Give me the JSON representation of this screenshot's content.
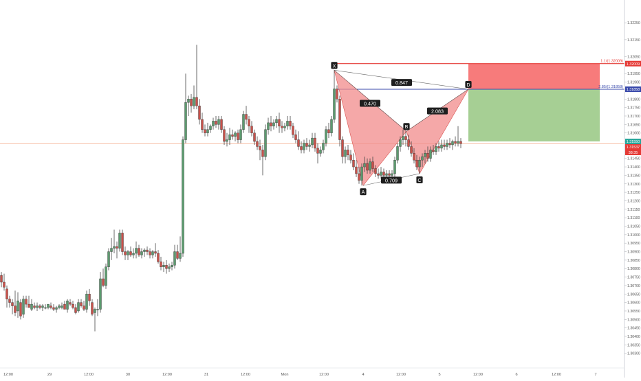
{
  "chart_data": {
    "type": "candlestick",
    "colors": {
      "up": "#26a69a",
      "up_fill": "#5b9b6e",
      "down": "#ef5350",
      "down_fill": "#c9514a",
      "pattern_fill": "#f28b8b",
      "stop_zone": "#f77b7b",
      "target_zone": "#a6cf94",
      "red_line": "#e53935",
      "blue_line": "#3949ab",
      "price_line": "#f4a582"
    },
    "y_axis": {
      "ylim": [
        1.3023,
        1.3236
      ],
      "ticks": [
        "1.32250",
        "1.32150",
        "1.32050",
        "1.31950",
        "1.31900",
        "1.31800",
        "1.31750",
        "1.31700",
        "1.31650",
        "1.31600",
        "1.31550",
        "1.31450",
        "1.31400",
        "1.31350",
        "1.31300",
        "1.31250",
        "1.31200",
        "1.31150",
        "1.31100",
        "1.31050",
        "1.31000",
        "1.30950",
        "1.30900",
        "1.30850",
        "1.30800",
        "1.30750",
        "1.30700",
        "1.30650",
        "1.30600",
        "1.30550",
        "1.30500",
        "1.30450",
        "1.30400",
        "1.30350",
        "1.30300"
      ]
    },
    "x_axis": {
      "ticks": [
        {
          "label": "12:00",
          "x": 12
        },
        {
          "label": "29",
          "x": 72
        },
        {
          "label": "12:00",
          "x": 129
        },
        {
          "label": "30",
          "x": 186
        },
        {
          "label": "12:00",
          "x": 243
        },
        {
          "label": "31",
          "x": 300
        },
        {
          "label": "12:00",
          "x": 357
        },
        {
          "label": "Mon",
          "x": 414
        },
        {
          "label": "12:00",
          "x": 471
        },
        {
          "label": "4",
          "x": 528
        },
        {
          "label": "12:00",
          "x": 583
        },
        {
          "label": "5",
          "x": 639
        },
        {
          "label": "12:00",
          "x": 695
        },
        {
          "label": "6",
          "x": 751
        },
        {
          "label": "12:00",
          "x": 809
        },
        {
          "label": "7",
          "x": 866
        }
      ]
    },
    "price_badges": [
      {
        "id": "stop-badge",
        "text": "1.32009",
        "value": 1.32009,
        "color": "#e53935"
      },
      {
        "id": "entry-badge",
        "text": "1.31858",
        "value": 1.31858,
        "color": "#3949ab"
      },
      {
        "id": "target-badge",
        "text": "1.31550",
        "value": 1.3155,
        "color": "#26a69a"
      },
      {
        "id": "last-badge",
        "text": "1.31537",
        "value": 1.31537,
        "color": "#e53935"
      },
      {
        "id": "countdown-badge",
        "text": "38:35",
        "value": 1.31505,
        "color": "#e53935"
      }
    ],
    "line_labels": [
      {
        "id": "stop-line-label",
        "text": "1.1/(1.32009)",
        "value": 1.32009
      },
      {
        "id": "entry-line-label",
        "text": "2.85/(1.31858)",
        "value": 1.31858
      }
    ],
    "pattern": {
      "name": "Bat",
      "points": [
        {
          "label": "X",
          "t": 486,
          "price": 1.3197
        },
        {
          "label": "A",
          "t": 528,
          "price": 1.3129
        },
        {
          "label": "B",
          "t": 591,
          "price": 1.3161
        },
        {
          "label": "C",
          "t": 610,
          "price": 1.3136
        },
        {
          "label": "D",
          "t": 681,
          "price": 1.31858
        }
      ],
      "ratios": [
        {
          "text": "0.847",
          "t": 584,
          "price": 1.31898
        },
        {
          "text": "0.470",
          "t": 538,
          "price": 1.31775
        },
        {
          "text": "2.083",
          "t": 636,
          "price": 1.3173
        },
        {
          "text": "0.709",
          "t": 569,
          "price": 1.31322
        }
      ]
    },
    "zones": {
      "stop": {
        "top": 1.32009,
        "bottom": 1.31858,
        "t_start": 681,
        "t_end": 872
      },
      "target": {
        "top": 1.31858,
        "bottom": 1.3155,
        "t_start": 681,
        "t_end": 872
      }
    },
    "series": [
      [
        -2,
        1.3078,
        1.3076,
        1.3074,
        1.3074
      ],
      [
        2,
        1.3076,
        1.3078,
        1.3069,
        1.3072
      ],
      [
        6,
        1.3072,
        1.3077,
        1.3067,
        1.3069
      ],
      [
        10,
        1.3068,
        1.307,
        1.3057,
        1.3062
      ],
      [
        14,
        1.3062,
        1.3064,
        1.3057,
        1.306
      ],
      [
        18,
        1.306,
        1.3062,
        1.3053,
        1.3058
      ],
      [
        22,
        1.3058,
        1.3067,
        1.3052,
        1.3054
      ],
      [
        26,
        1.3055,
        1.3066,
        1.3051,
        1.3061
      ],
      [
        30,
        1.306,
        1.3062,
        1.305,
        1.3052
      ],
      [
        34,
        1.3053,
        1.3064,
        1.3051,
        1.3062
      ],
      [
        38,
        1.3062,
        1.3064,
        1.3057,
        1.3059
      ],
      [
        42,
        1.3059,
        1.3064,
        1.3057,
        1.3057
      ],
      [
        46,
        1.3056,
        1.3062,
        1.3055,
        1.3059
      ],
      [
        50,
        1.3058,
        1.306,
        1.3056,
        1.3057
      ],
      [
        54,
        1.3057,
        1.306,
        1.3055,
        1.3058
      ],
      [
        58,
        1.3058,
        1.3059,
        1.3056,
        1.3057
      ],
      [
        62,
        1.3057,
        1.3059,
        1.3055,
        1.3058
      ],
      [
        66,
        1.3057,
        1.3059,
        1.3056,
        1.3057
      ],
      [
        70,
        1.3057,
        1.3059,
        1.3056,
        1.3059
      ],
      [
        74,
        1.3058,
        1.306,
        1.3056,
        1.3057
      ],
      [
        78,
        1.3057,
        1.3059,
        1.3055,
        1.3056
      ],
      [
        82,
        1.3056,
        1.3058,
        1.3054,
        1.3057
      ],
      [
        86,
        1.3057,
        1.3059,
        1.3056,
        1.3058
      ],
      [
        90,
        1.3057,
        1.306,
        1.3056,
        1.3058
      ],
      [
        94,
        1.3059,
        1.3061,
        1.3056,
        1.3056
      ],
      [
        98,
        1.3056,
        1.3062,
        1.3054,
        1.3061
      ],
      [
        102,
        1.306,
        1.3062,
        1.3058,
        1.3059
      ],
      [
        106,
        1.3059,
        1.3061,
        1.3056,
        1.3057
      ],
      [
        110,
        1.3057,
        1.3059,
        1.3053,
        1.3054
      ],
      [
        114,
        1.3055,
        1.3062,
        1.3054,
        1.306
      ],
      [
        118,
        1.306,
        1.3062,
        1.3057,
        1.3058
      ],
      [
        122,
        1.3058,
        1.3061,
        1.3055,
        1.3056
      ],
      [
        126,
        1.3056,
        1.3067,
        1.3054,
        1.3065
      ],
      [
        130,
        1.3065,
        1.3068,
        1.3058,
        1.3061
      ],
      [
        134,
        1.306,
        1.3062,
        1.3052,
        1.3053
      ],
      [
        138,
        1.3054,
        1.3057,
        1.3043,
        1.3056
      ],
      [
        142,
        1.3056,
        1.3062,
        1.3052,
        1.3056
      ],
      [
        146,
        1.3056,
        1.3078,
        1.3054,
        1.3074
      ],
      [
        150,
        1.3074,
        1.308,
        1.3069,
        1.307
      ],
      [
        154,
        1.307,
        1.3083,
        1.3068,
        1.3081
      ],
      [
        158,
        1.3081,
        1.3092,
        1.3079,
        1.309
      ],
      [
        162,
        1.309,
        1.3098,
        1.3085,
        1.3092
      ],
      [
        166,
        1.3092,
        1.3103,
        1.3089,
        1.3093
      ],
      [
        170,
        1.3093,
        1.3096,
        1.3086,
        1.3092
      ],
      [
        174,
        1.3092,
        1.3103,
        1.309,
        1.3101
      ],
      [
        178,
        1.3101,
        1.3103,
        1.3088,
        1.309
      ],
      [
        182,
        1.309,
        1.3093,
        1.3085,
        1.3088
      ],
      [
        186,
        1.3088,
        1.3091,
        1.3085,
        1.309
      ],
      [
        190,
        1.309,
        1.3093,
        1.3087,
        1.3088
      ],
      [
        194,
        1.3088,
        1.3092,
        1.3086,
        1.3089
      ],
      [
        198,
        1.3089,
        1.3096,
        1.3086,
        1.3092
      ],
      [
        202,
        1.3092,
        1.3094,
        1.3087,
        1.3088
      ],
      [
        206,
        1.3088,
        1.3092,
        1.3086,
        1.309
      ],
      [
        210,
        1.309,
        1.3092,
        1.3087,
        1.3091
      ],
      [
        214,
        1.3091,
        1.3093,
        1.3088,
        1.309
      ],
      [
        218,
        1.309,
        1.3092,
        1.3086,
        1.3088
      ],
      [
        222,
        1.3088,
        1.3091,
        1.3086,
        1.309
      ],
      [
        226,
        1.309,
        1.3095,
        1.3087,
        1.3089
      ],
      [
        230,
        1.3089,
        1.3091,
        1.3083,
        1.3084
      ],
      [
        234,
        1.3084,
        1.3087,
        1.3079,
        1.3081
      ],
      [
        238,
        1.3081,
        1.3084,
        1.3078,
        1.3082
      ],
      [
        242,
        1.3082,
        1.3085,
        1.3077,
        1.308
      ],
      [
        246,
        1.308,
        1.3083,
        1.3078,
        1.3081
      ],
      [
        250,
        1.3081,
        1.3084,
        1.3079,
        1.3082
      ],
      [
        254,
        1.3082,
        1.3094,
        1.308,
        1.309
      ],
      [
        258,
        1.309,
        1.3094,
        1.3085,
        1.3086
      ],
      [
        262,
        1.3086,
        1.3099,
        1.3084,
        1.3089
      ],
      [
        266,
        1.3089,
        1.3158,
        1.3087,
        1.3156
      ],
      [
        270,
        1.3156,
        1.3195,
        1.3154,
        1.3178
      ],
      [
        274,
        1.3178,
        1.3182,
        1.317,
        1.318
      ],
      [
        278,
        1.318,
        1.3183,
        1.3172,
        1.3176
      ],
      [
        282,
        1.3176,
        1.3188,
        1.3174,
        1.3181
      ],
      [
        286,
        1.3181,
        1.3212,
        1.3174,
        1.3176
      ],
      [
        290,
        1.3176,
        1.318,
        1.3165,
        1.3168
      ],
      [
        294,
        1.3168,
        1.3172,
        1.316,
        1.3162
      ],
      [
        298,
        1.3162,
        1.3165,
        1.3158,
        1.316
      ],
      [
        302,
        1.316,
        1.3166,
        1.3158,
        1.3162
      ],
      [
        306,
        1.3162,
        1.3165,
        1.316,
        1.3164
      ],
      [
        310,
        1.3164,
        1.3169,
        1.3162,
        1.3167
      ],
      [
        314,
        1.3167,
        1.317,
        1.3163,
        1.3165
      ],
      [
        318,
        1.3165,
        1.317,
        1.3162,
        1.3168
      ],
      [
        322,
        1.3168,
        1.317,
        1.316,
        1.3162
      ],
      [
        326,
        1.3162,
        1.3164,
        1.3153,
        1.3155
      ],
      [
        330,
        1.3155,
        1.316,
        1.3152,
        1.3156
      ],
      [
        334,
        1.3156,
        1.3163,
        1.3153,
        1.3159
      ],
      [
        338,
        1.3159,
        1.3162,
        1.3156,
        1.3158
      ],
      [
        342,
        1.3158,
        1.3161,
        1.3155,
        1.316
      ],
      [
        346,
        1.316,
        1.3162,
        1.3154,
        1.3156
      ],
      [
        350,
        1.3156,
        1.3165,
        1.3154,
        1.3162
      ],
      [
        354,
        1.3162,
        1.3173,
        1.316,
        1.3171
      ],
      [
        358,
        1.3171,
        1.3176,
        1.3165,
        1.3168
      ],
      [
        362,
        1.3168,
        1.317,
        1.316,
        1.3164
      ],
      [
        366,
        1.3164,
        1.3167,
        1.3158,
        1.316
      ],
      [
        370,
        1.316,
        1.3162,
        1.3153,
        1.3155
      ],
      [
        374,
        1.3155,
        1.3158,
        1.315,
        1.3152
      ],
      [
        378,
        1.3152,
        1.3156,
        1.3144,
        1.315
      ],
      [
        382,
        1.315,
        1.3153,
        1.3135,
        1.3146
      ],
      [
        386,
        1.3146,
        1.3165,
        1.3144,
        1.3162
      ],
      [
        390,
        1.3162,
        1.3169,
        1.3159,
        1.3166
      ],
      [
        394,
        1.3166,
        1.317,
        1.3161,
        1.3164
      ],
      [
        398,
        1.3164,
        1.3168,
        1.3162,
        1.3166
      ],
      [
        402,
        1.3166,
        1.317,
        1.3163,
        1.3168
      ],
      [
        406,
        1.3168,
        1.3172,
        1.316,
        1.3164
      ],
      [
        410,
        1.3164,
        1.3167,
        1.316,
        1.3163
      ],
      [
        414,
        1.3163,
        1.3166,
        1.3161,
        1.3164
      ],
      [
        418,
        1.3164,
        1.317,
        1.3162,
        1.3167
      ],
      [
        422,
        1.3167,
        1.317,
        1.3162,
        1.3164
      ],
      [
        426,
        1.3164,
        1.3166,
        1.3157,
        1.3159
      ],
      [
        430,
        1.3159,
        1.3162,
        1.3154,
        1.3156
      ],
      [
        434,
        1.3156,
        1.3161,
        1.315,
        1.3152
      ],
      [
        438,
        1.3152,
        1.3155,
        1.3148,
        1.315
      ],
      [
        442,
        1.315,
        1.3156,
        1.3148,
        1.3154
      ],
      [
        446,
        1.3154,
        1.3157,
        1.315,
        1.3152
      ],
      [
        450,
        1.3152,
        1.3156,
        1.3149,
        1.3153
      ],
      [
        454,
        1.3153,
        1.316,
        1.3151,
        1.3157
      ],
      [
        458,
        1.3157,
        1.316,
        1.3149,
        1.3151
      ],
      [
        462,
        1.3151,
        1.3154,
        1.3142,
        1.3148
      ],
      [
        466,
        1.3148,
        1.3152,
        1.3146,
        1.315
      ],
      [
        470,
        1.315,
        1.3156,
        1.3148,
        1.3154
      ],
      [
        474,
        1.3154,
        1.3164,
        1.3152,
        1.3162
      ],
      [
        478,
        1.3162,
        1.3166,
        1.3157,
        1.316
      ],
      [
        482,
        1.316,
        1.317,
        1.3158,
        1.3168
      ],
      [
        486,
        1.3168,
        1.3197,
        1.3166,
        1.3186
      ],
      [
        490,
        1.3186,
        1.3188,
        1.3178,
        1.318
      ],
      [
        494,
        1.318,
        1.3182,
        1.3152,
        1.3156
      ],
      [
        498,
        1.3156,
        1.3158,
        1.3142,
        1.3146
      ],
      [
        502,
        1.3146,
        1.3152,
        1.3142,
        1.315
      ],
      [
        506,
        1.315,
        1.3153,
        1.3144,
        1.3147
      ],
      [
        510,
        1.3147,
        1.315,
        1.3142,
        1.3144
      ],
      [
        514,
        1.3144,
        1.3148,
        1.3138,
        1.314
      ],
      [
        518,
        1.314,
        1.3144,
        1.3134,
        1.3136
      ],
      [
        522,
        1.3136,
        1.314,
        1.313,
        1.3132
      ],
      [
        526,
        1.3132,
        1.3142,
        1.3129,
        1.314
      ],
      [
        530,
        1.314,
        1.3146,
        1.3137,
        1.3142
      ],
      [
        534,
        1.3142,
        1.3145,
        1.3136,
        1.3138
      ],
      [
        538,
        1.3138,
        1.3145,
        1.3136,
        1.3143
      ],
      [
        542,
        1.3143,
        1.3146,
        1.3137,
        1.3139
      ],
      [
        546,
        1.3139,
        1.3141,
        1.3134,
        1.3136
      ],
      [
        550,
        1.3136,
        1.3139,
        1.3133,
        1.3135
      ],
      [
        554,
        1.3135,
        1.314,
        1.3133,
        1.3137
      ],
      [
        558,
        1.3137,
        1.3139,
        1.3133,
        1.3135
      ],
      [
        562,
        1.3135,
        1.3138,
        1.3132,
        1.3136
      ],
      [
        566,
        1.3136,
        1.3138,
        1.3134,
        1.3135
      ],
      [
        570,
        1.3135,
        1.3138,
        1.3132,
        1.3136
      ],
      [
        574,
        1.3136,
        1.3146,
        1.3134,
        1.3144
      ],
      [
        578,
        1.3144,
        1.3154,
        1.3142,
        1.3152
      ],
      [
        582,
        1.3152,
        1.3158,
        1.3149,
        1.3156
      ],
      [
        586,
        1.3156,
        1.3162,
        1.3153,
        1.3158
      ],
      [
        590,
        1.3158,
        1.3161,
        1.3152,
        1.3156
      ],
      [
        594,
        1.3156,
        1.3159,
        1.315,
        1.3152
      ],
      [
        598,
        1.3152,
        1.3155,
        1.3146,
        1.3148
      ],
      [
        602,
        1.3148,
        1.3151,
        1.3142,
        1.3144
      ],
      [
        606,
        1.3144,
        1.3147,
        1.3138,
        1.314
      ],
      [
        610,
        1.314,
        1.3146,
        1.3136,
        1.3144
      ],
      [
        614,
        1.3144,
        1.3148,
        1.314,
        1.3146
      ],
      [
        618,
        1.3146,
        1.315,
        1.3142,
        1.3148
      ],
      [
        622,
        1.3148,
        1.3152,
        1.3143,
        1.3145
      ],
      [
        626,
        1.3145,
        1.3152,
        1.3143,
        1.315
      ],
      [
        630,
        1.315,
        1.3153,
        1.3147,
        1.3149
      ],
      [
        634,
        1.3149,
        1.3154,
        1.3147,
        1.3152
      ],
      [
        638,
        1.3152,
        1.3155,
        1.3149,
        1.3151
      ],
      [
        642,
        1.3151,
        1.3156,
        1.3149,
        1.3153
      ],
      [
        646,
        1.3153,
        1.3156,
        1.315,
        1.3152
      ],
      [
        650,
        1.3152,
        1.3156,
        1.315,
        1.3154
      ],
      [
        654,
        1.3154,
        1.3157,
        1.3151,
        1.3153
      ],
      [
        658,
        1.3153,
        1.3156,
        1.315,
        1.3155
      ],
      [
        662,
        1.3155,
        1.3158,
        1.3152,
        1.3154
      ],
      [
        666,
        1.3154,
        1.3164,
        1.3152,
        1.3155
      ],
      [
        670,
        1.3155,
        1.3157,
        1.3151,
        1.31537
      ]
    ]
  }
}
